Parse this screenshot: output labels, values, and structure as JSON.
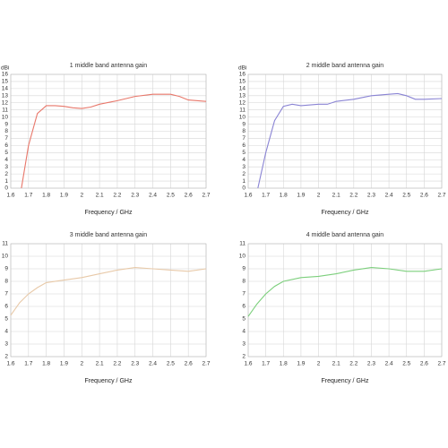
{
  "chart_data": [
    {
      "type": "line",
      "title": "1 middle band antenna gain",
      "y_label": "dBi",
      "x_label": "Frequency / GHz",
      "x": [
        1.66,
        1.7,
        1.75,
        1.8,
        1.85,
        1.9,
        1.95,
        2.0,
        2.05,
        2.1,
        2.2,
        2.3,
        2.4,
        2.5,
        2.55,
        2.6,
        2.7
      ],
      "series": [
        {
          "color": "#e8776a",
          "values": [
            0,
            6,
            10.5,
            11.6,
            11.6,
            11.5,
            11.3,
            11.2,
            11.4,
            11.8,
            12.3,
            12.9,
            13.2,
            13.2,
            12.9,
            12.4,
            12.2
          ]
        }
      ],
      "xlim": [
        1.6,
        2.7
      ],
      "xticks": [
        1.6,
        1.7,
        1.8,
        1.9,
        2,
        2.1,
        2.2,
        2.3,
        2.4,
        2.5,
        2.6,
        2.7
      ],
      "ylim": [
        0,
        16
      ],
      "yticks": [
        0,
        1,
        2,
        3,
        4,
        5,
        6,
        7,
        8,
        9,
        10,
        11,
        12,
        13,
        14,
        15,
        16
      ],
      "grid": true
    },
    {
      "type": "line",
      "title": "2 middle band antenna gain",
      "y_label": "dBi",
      "x_label": "Frequency / GHz",
      "x": [
        1.655,
        1.7,
        1.75,
        1.8,
        1.85,
        1.9,
        2.0,
        2.05,
        2.1,
        2.2,
        2.3,
        2.4,
        2.45,
        2.5,
        2.55,
        2.6,
        2.7
      ],
      "series": [
        {
          "color": "#8a84d4",
          "values": [
            0,
            5,
            9.5,
            11.5,
            11.8,
            11.6,
            11.8,
            11.8,
            12.2,
            12.5,
            13.0,
            13.2,
            13.3,
            13.0,
            12.5,
            12.5,
            12.6
          ]
        }
      ],
      "xlim": [
        1.6,
        2.7
      ],
      "xticks": [
        1.6,
        1.7,
        1.8,
        1.9,
        2,
        2.1,
        2.2,
        2.3,
        2.4,
        2.5,
        2.6,
        2.7
      ],
      "ylim": [
        0,
        16
      ],
      "yticks": [
        0,
        1,
        2,
        3,
        4,
        5,
        6,
        7,
        8,
        9,
        10,
        11,
        12,
        13,
        14,
        15,
        16
      ],
      "grid": true
    },
    {
      "type": "line",
      "title": "3 middle band antenna gain",
      "x_label": "Frequency / GHz",
      "x": [
        1.6,
        1.65,
        1.7,
        1.75,
        1.8,
        1.9,
        2.0,
        2.1,
        2.2,
        2.3,
        2.4,
        2.5,
        2.6,
        2.7
      ],
      "series": [
        {
          "color": "#e8c9a8",
          "values": [
            5.3,
            6.3,
            7.0,
            7.5,
            7.9,
            8.1,
            8.3,
            8.6,
            8.9,
            9.1,
            9.0,
            8.9,
            8.8,
            9.0
          ]
        }
      ],
      "xlim": [
        1.6,
        2.7
      ],
      "xticks": [
        1.6,
        1.7,
        1.8,
        1.9,
        2,
        2.1,
        2.2,
        2.3,
        2.4,
        2.5,
        2.6,
        2.7
      ],
      "ylim": [
        2,
        11
      ],
      "yticks": [
        2,
        3,
        4,
        5,
        6,
        7,
        8,
        9,
        10,
        11
      ],
      "grid": true
    },
    {
      "type": "line",
      "title": "4 middle band antenna gain",
      "x_label": "Frequency / GHz",
      "x": [
        1.6,
        1.65,
        1.7,
        1.75,
        1.8,
        1.9,
        2.0,
        2.1,
        2.2,
        2.3,
        2.4,
        2.5,
        2.6,
        2.7
      ],
      "series": [
        {
          "color": "#7ccf7c",
          "values": [
            5.2,
            6.2,
            7.0,
            7.6,
            8.0,
            8.3,
            8.4,
            8.6,
            8.9,
            9.1,
            9.0,
            8.8,
            8.8,
            9.0
          ]
        }
      ],
      "xlim": [
        1.6,
        2.7
      ],
      "xticks": [
        1.6,
        1.7,
        1.8,
        1.9,
        2,
        2.1,
        2.2,
        2.3,
        2.4,
        2.5,
        2.6,
        2.7
      ],
      "ylim": [
        2,
        11
      ],
      "yticks": [
        2,
        3,
        4,
        5,
        6,
        7,
        8,
        9,
        10,
        11
      ],
      "grid": true
    }
  ]
}
